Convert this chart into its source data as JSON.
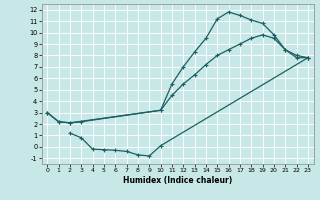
{
  "xlabel": "Humidex (Indice chaleur)",
  "bg_color": "#c8e8e8",
  "grid_color": "#aacccc",
  "line_color": "#1a6060",
  "xlim": [
    -0.5,
    23.5
  ],
  "ylim": [
    -1.5,
    12.5
  ],
  "xticks": [
    0,
    1,
    2,
    3,
    4,
    5,
    6,
    7,
    8,
    9,
    10,
    11,
    12,
    13,
    14,
    15,
    16,
    17,
    18,
    19,
    20,
    21,
    22,
    23
  ],
  "yticks": [
    -1,
    0,
    1,
    2,
    3,
    4,
    5,
    6,
    7,
    8,
    9,
    10,
    11,
    12
  ],
  "line1_x": [
    0,
    1,
    2,
    3,
    10,
    11,
    12,
    13,
    14,
    15,
    16,
    17,
    18,
    19,
    20,
    21,
    22,
    23
  ],
  "line1_y": [
    3,
    2.2,
    2.1,
    2.2,
    3.2,
    5.5,
    7,
    8.3,
    9.5,
    11.2,
    11.8,
    11.5,
    11.1,
    10.8,
    9.8,
    8.5,
    8.0,
    7.8
  ],
  "line2_x": [
    0,
    1,
    2,
    10,
    11,
    12,
    13,
    14,
    15,
    16,
    17,
    18,
    19,
    20,
    21,
    22,
    23
  ],
  "line2_y": [
    3,
    2.2,
    2.1,
    3.2,
    4.5,
    5.5,
    6.3,
    7.2,
    8.0,
    8.5,
    9.0,
    9.5,
    9.8,
    9.5,
    8.5,
    7.8,
    7.8
  ],
  "line3_x": [
    2,
    3,
    4,
    5,
    6,
    7,
    8,
    9,
    10,
    23
  ],
  "line3_y": [
    1.2,
    0.8,
    -0.2,
    -0.25,
    -0.3,
    -0.4,
    -0.7,
    -0.8,
    0.1,
    7.8
  ]
}
